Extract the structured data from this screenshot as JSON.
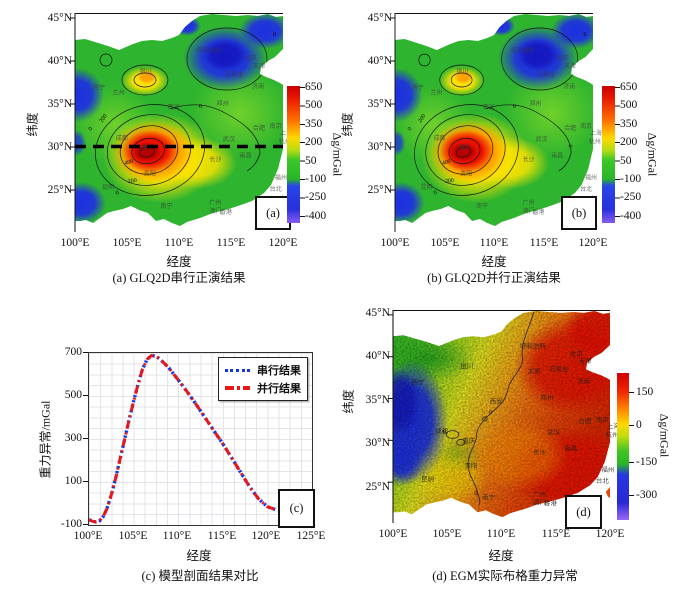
{
  "panel_a": {
    "caption": "(a) GLQ2D串行正演结果",
    "corner_label": "(a)",
    "xlabel": "经度",
    "ylabel": "纬度",
    "x_ticks": [
      "100°E",
      "105°E",
      "110°E",
      "115°E",
      "120°E"
    ],
    "y_ticks": [
      "45°N",
      "40°N",
      "35°N",
      "30°N",
      "25°N"
    ],
    "colorbar": {
      "label": "Δg/mGal",
      "ticks": [
        "650",
        "500",
        "350",
        "200",
        "50",
        "-100",
        "-250",
        "-400"
      ]
    },
    "contour_labels": {
      "zero": "0",
      "two_hundred": "200",
      "four_hundred": "400"
    }
  },
  "panel_b": {
    "caption": "(b) GLQ2D并行正演结果",
    "corner_label": "(b)",
    "xlabel": "经度",
    "ylabel": "纬度",
    "x_ticks": [
      "100°E",
      "105°E",
      "110°E",
      "115°E",
      "120°E"
    ],
    "y_ticks": [
      "45°N",
      "40°N",
      "35°N",
      "30°N",
      "25°N"
    ],
    "colorbar": {
      "label": "Δg/mGal",
      "ticks": [
        "650",
        "500",
        "350",
        "200",
        "50",
        "-100",
        "-250",
        "-400"
      ]
    }
  },
  "panel_c": {
    "caption": "(c) 模型剖面结果对比",
    "corner_label": "(c)",
    "xlabel": "经度",
    "ylabel": "重力异常/mGal",
    "x_ticks": [
      "100°E",
      "105°E",
      "110°E",
      "115°E",
      "120°E",
      "125°E"
    ],
    "y_ticks": [
      "700",
      "500",
      "300",
      "100",
      "-100"
    ],
    "legend": [
      "串行结果",
      "并行结果"
    ]
  },
  "panel_d": {
    "caption": "(d) EGM实际布格重力异常",
    "corner_label": "(d)",
    "xlabel": "经度",
    "ylabel": "纬度",
    "x_ticks": [
      "100°E",
      "105°E",
      "110°E",
      "115°E",
      "120°E"
    ],
    "y_ticks": [
      "45°N",
      "40°N",
      "35°N",
      "30°N",
      "25°N"
    ],
    "colorbar": {
      "label": "Δg/mGal",
      "ticks": [
        "150",
        "0",
        "-150",
        "-300"
      ]
    },
    "contour_labels": {
      "zero": "0"
    }
  },
  "cities_ab": [
    {
      "name": "呼和浩特",
      "lon": 111.7,
      "lat": 41.0
    },
    {
      "name": "北京",
      "lon": 116.3,
      "lat": 40.1
    },
    {
      "name": "天津",
      "lon": 117.1,
      "lat": 39.2
    },
    {
      "name": "石家庄",
      "lon": 114.4,
      "lat": 38.2
    },
    {
      "name": "济南",
      "lon": 117.0,
      "lat": 36.8
    },
    {
      "name": "银川",
      "lon": 106.2,
      "lat": 38.6
    },
    {
      "name": "西宁",
      "lon": 101.7,
      "lat": 36.7
    },
    {
      "name": "兰州",
      "lon": 103.6,
      "lat": 36.1
    },
    {
      "name": "西安",
      "lon": 108.9,
      "lat": 34.4
    },
    {
      "name": "郑州",
      "lon": 113.6,
      "lat": 34.8
    },
    {
      "name": "合肥",
      "lon": 117.1,
      "lat": 32.0
    },
    {
      "name": "南京",
      "lon": 118.7,
      "lat": 32.2
    },
    {
      "name": "上海",
      "lon": 119.7,
      "lat": 31.4
    },
    {
      "name": "杭州",
      "lon": 119.6,
      "lat": 30.4
    },
    {
      "name": "武汉",
      "lon": 114.2,
      "lat": 30.7
    },
    {
      "name": "长沙",
      "lon": 112.9,
      "lat": 28.3
    },
    {
      "name": "南昌",
      "lon": 115.8,
      "lat": 28.8
    },
    {
      "name": "福州",
      "lon": 119.2,
      "lat": 26.2
    },
    {
      "name": "台北",
      "lon": 118.7,
      "lat": 24.9
    },
    {
      "name": "昆明",
      "lon": 102.6,
      "lat": 25.1
    },
    {
      "name": "南宁",
      "lon": 108.2,
      "lat": 22.9
    },
    {
      "name": "广州",
      "lon": 112.9,
      "lat": 23.3
    },
    {
      "name": "澳门",
      "lon": 112.9,
      "lat": 22.3
    },
    {
      "name": "香港",
      "lon": 113.9,
      "lat": 22.2
    },
    {
      "name": "贵阳",
      "lon": 106.6,
      "lat": 26.7
    },
    {
      "name": "重庆",
      "lon": 106.4,
      "lat": 29.7
    },
    {
      "name": "成都",
      "lon": 103.9,
      "lat": 30.8
    }
  ],
  "cities_d": [
    {
      "name": "呼和浩特",
      "lon": 111.7,
      "lat": 41.0
    },
    {
      "name": "北京",
      "lon": 116.3,
      "lat": 40.1
    },
    {
      "name": "天津",
      "lon": 117.1,
      "lat": 39.2
    },
    {
      "name": "石家庄",
      "lon": 114.4,
      "lat": 38.2
    },
    {
      "name": "太原",
      "lon": 112.4,
      "lat": 38.0
    },
    {
      "name": "济南",
      "lon": 117.0,
      "lat": 36.8
    },
    {
      "name": "银川",
      "lon": 106.2,
      "lat": 38.6
    },
    {
      "name": "西宁",
      "lon": 101.7,
      "lat": 36.7
    },
    {
      "name": "西安",
      "lon": 108.9,
      "lat": 34.4
    },
    {
      "name": "郑州",
      "lon": 113.6,
      "lat": 34.8
    },
    {
      "name": "合肥",
      "lon": 117.1,
      "lat": 32.0
    },
    {
      "name": "南京",
      "lon": 118.7,
      "lat": 32.2
    },
    {
      "name": "上海",
      "lon": 119.7,
      "lat": 31.4
    },
    {
      "name": "杭州",
      "lon": 119.6,
      "lat": 30.4
    },
    {
      "name": "武汉",
      "lon": 114.2,
      "lat": 30.7
    },
    {
      "name": "长沙",
      "lon": 112.9,
      "lat": 28.3
    },
    {
      "name": "南昌",
      "lon": 115.8,
      "lat": 28.8
    },
    {
      "name": "福州",
      "lon": 119.2,
      "lat": 26.2
    },
    {
      "name": "台北",
      "lon": 118.7,
      "lat": 24.9
    },
    {
      "name": "昆明",
      "lon": 102.6,
      "lat": 25.1
    },
    {
      "name": "南宁",
      "lon": 108.2,
      "lat": 22.9
    },
    {
      "name": "广州",
      "lon": 112.9,
      "lat": 23.3
    },
    {
      "name": "澳门",
      "lon": 112.9,
      "lat": 22.3
    },
    {
      "name": "香港",
      "lon": 113.9,
      "lat": 22.2
    },
    {
      "name": "贵阳",
      "lon": 106.6,
      "lat": 26.7
    },
    {
      "name": "重庆",
      "lon": 106.4,
      "lat": 29.7
    },
    {
      "name": "成都",
      "lon": 103.9,
      "lat": 30.8
    }
  ],
  "chart_data": [
    {
      "type": "heatmap",
      "title": "(a) GLQ2D串行正演结果",
      "xlabel": "经度",
      "ylabel": "纬度",
      "xlim": [
        100,
        120
      ],
      "ylim": [
        25,
        45
      ],
      "x_tick_labels": [
        "100°E",
        "105°E",
        "110°E",
        "115°E",
        "120°E"
      ],
      "y_tick_labels": [
        "25°N",
        "30°N",
        "35°N",
        "40°N",
        "45°N"
      ],
      "colorbar_label": "Δg/mGal",
      "colorbar_ticks": [
        650,
        500,
        350,
        200,
        50,
        -100,
        -250,
        -400
      ],
      "value_peak": 650,
      "value_min": -400,
      "peak_location": {
        "lon": 107,
        "lat": 29.3
      },
      "contour_levels_labeled": [
        0,
        200,
        400
      ],
      "profile_line_lat": 30
    },
    {
      "type": "heatmap",
      "title": "(b) GLQ2D并行正演结果",
      "xlabel": "经度",
      "ylabel": "纬度",
      "xlim": [
        100,
        120
      ],
      "ylim": [
        25,
        45
      ],
      "x_tick_labels": [
        "100°E",
        "105°E",
        "110°E",
        "115°E",
        "120°E"
      ],
      "y_tick_labels": [
        "25°N",
        "30°N",
        "35°N",
        "40°N",
        "45°N"
      ],
      "colorbar_label": "Δg/mGal",
      "colorbar_ticks": [
        650,
        500,
        350,
        200,
        50,
        -100,
        -250,
        -400
      ],
      "value_peak": 650,
      "value_min": -400,
      "peak_location": {
        "lon": 107,
        "lat": 29.3
      },
      "contour_levels_labeled": [
        0,
        200,
        400
      ]
    },
    {
      "type": "line",
      "title": "(c) 模型剖面结果对比",
      "xlabel": "经度",
      "ylabel": "重力异常/mGal",
      "xlim": [
        100,
        125
      ],
      "ylim": [
        -100,
        700
      ],
      "x_tick_labels": [
        "100°E",
        "105°E",
        "110°E",
        "115°E",
        "120°E",
        "125°E"
      ],
      "y_tick_labels": [
        700,
        500,
        300,
        100,
        -100
      ],
      "grid": true,
      "legend_position": "top-right",
      "x": [
        100,
        100.4,
        100.8,
        101.2,
        101.6,
        102,
        102.5,
        103,
        103.5,
        104,
        104.5,
        105,
        105.5,
        106,
        106.5,
        107,
        107.5,
        108,
        108.5,
        109,
        110,
        111,
        112,
        113,
        114,
        115,
        116,
        117,
        118,
        119,
        120,
        121,
        122
      ],
      "series": [
        {
          "name": "串行结果",
          "color": "#1535e8",
          "style": "dotted",
          "values": [
            -75,
            -83,
            -86,
            -80,
            -60,
            -25,
            40,
            120,
            210,
            300,
            390,
            475,
            555,
            625,
            670,
            688,
            685,
            670,
            650,
            628,
            575,
            520,
            462,
            400,
            338,
            278,
            212,
            145,
            78,
            22,
            -15,
            -30,
            -35
          ]
        },
        {
          "name": "并行结果",
          "color": "#e81818",
          "style": "dash-dot",
          "values": [
            -75,
            -83,
            -86,
            -80,
            -60,
            -25,
            40,
            120,
            210,
            300,
            390,
            475,
            555,
            625,
            670,
            688,
            685,
            670,
            650,
            628,
            575,
            520,
            462,
            400,
            338,
            278,
            212,
            145,
            78,
            22,
            -15,
            -30,
            -35
          ]
        }
      ]
    },
    {
      "type": "heatmap",
      "title": "(d) EGM实际布格重力异常",
      "xlabel": "经度",
      "ylabel": "纬度",
      "xlim": [
        100,
        120
      ],
      "ylim": [
        25,
        45
      ],
      "x_tick_labels": [
        "100°E",
        "105°E",
        "110°E",
        "115°E",
        "120°E"
      ],
      "y_tick_labels": [
        "25°N",
        "30°N",
        "35°N",
        "40°N",
        "45°N"
      ],
      "colorbar_label": "Δg/mGal",
      "colorbar_ticks": [
        150,
        0,
        -150,
        -300
      ],
      "value_peak": 230,
      "value_min": -410,
      "low_region": "west (Tibetan plateau margin, blue)",
      "high_region": "east and southeast coast (red)",
      "contour_levels_labeled": [
        0
      ]
    }
  ]
}
